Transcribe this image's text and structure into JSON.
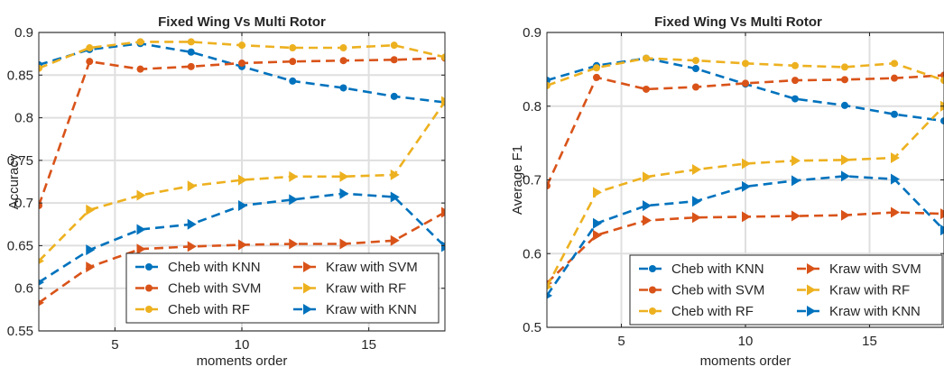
{
  "chart_data": [
    {
      "type": "line",
      "title": "Fixed Wing Vs Multi Rotor",
      "xlabel": "moments order",
      "ylabel": "Accuracy",
      "xlim": [
        2,
        18
      ],
      "ylim": [
        0.55,
        0.9
      ],
      "xticks": [
        5,
        10,
        15
      ],
      "yticks": [
        0.55,
        0.6,
        0.65,
        0.7,
        0.75,
        0.8,
        0.85,
        0.9
      ],
      "grid": true,
      "legend_position": "bottom-right",
      "x": [
        2,
        4,
        6,
        8,
        10,
        12,
        14,
        16,
        18
      ],
      "series": [
        {
          "name": "Cheb with KNN",
          "color": "#0072BD",
          "marker": "circle",
          "values": [
            0.862,
            0.88,
            0.887,
            0.877,
            0.86,
            0.843,
            0.835,
            0.825,
            0.818
          ]
        },
        {
          "name": "Cheb with SVM",
          "color": "#D95319",
          "marker": "circle",
          "values": [
            0.697,
            0.866,
            0.857,
            0.86,
            0.864,
            0.866,
            0.867,
            0.868,
            0.87
          ]
        },
        {
          "name": "Cheb with RF",
          "color": "#EDB120",
          "marker": "circle",
          "values": [
            0.858,
            0.882,
            0.889,
            0.889,
            0.885,
            0.882,
            0.882,
            0.885,
            0.871
          ]
        },
        {
          "name": "Kraw with SVM",
          "color": "#D95319",
          "marker": "triangle-right",
          "values": [
            0.583,
            0.625,
            0.646,
            0.649,
            0.651,
            0.652,
            0.652,
            0.656,
            0.689
          ]
        },
        {
          "name": "Kraw with RF",
          "color": "#EDB120",
          "marker": "triangle-right",
          "values": [
            0.632,
            0.692,
            0.709,
            0.72,
            0.727,
            0.731,
            0.731,
            0.733,
            0.819
          ]
        },
        {
          "name": "Kraw with KNN",
          "color": "#0072BD",
          "marker": "triangle-right",
          "values": [
            0.607,
            0.645,
            0.669,
            0.675,
            0.697,
            0.704,
            0.711,
            0.707,
            0.649
          ]
        }
      ]
    },
    {
      "type": "line",
      "title": "Fixed Wing Vs Multi Rotor",
      "xlabel": "moments order",
      "ylabel": "Average F1",
      "xlim": [
        2,
        18
      ],
      "ylim": [
        0.5,
        0.9
      ],
      "xticks": [
        5,
        10,
        15
      ],
      "yticks": [
        0.5,
        0.6,
        0.7,
        0.8,
        0.9
      ],
      "grid": true,
      "legend_position": "bottom-right",
      "x": [
        2,
        4,
        6,
        8,
        10,
        12,
        14,
        16,
        18
      ],
      "series": [
        {
          "name": "Cheb with KNN",
          "color": "#0072BD",
          "marker": "circle",
          "values": [
            0.835,
            0.855,
            0.865,
            0.851,
            0.83,
            0.81,
            0.801,
            0.789,
            0.78
          ]
        },
        {
          "name": "Cheb with SVM",
          "color": "#D95319",
          "marker": "circle",
          "values": [
            0.692,
            0.839,
            0.823,
            0.826,
            0.831,
            0.835,
            0.836,
            0.838,
            0.842
          ]
        },
        {
          "name": "Cheb with RF",
          "color": "#EDB120",
          "marker": "circle",
          "values": [
            0.828,
            0.852,
            0.865,
            0.862,
            0.858,
            0.855,
            0.853,
            0.858,
            0.835
          ]
        },
        {
          "name": "Kraw with SVM",
          "color": "#D95319",
          "marker": "triangle-right",
          "values": [
            0.56,
            0.625,
            0.645,
            0.649,
            0.65,
            0.651,
            0.652,
            0.656,
            0.654
          ]
        },
        {
          "name": "Kraw with RF",
          "color": "#EDB120",
          "marker": "triangle-right",
          "values": [
            0.555,
            0.683,
            0.704,
            0.714,
            0.722,
            0.726,
            0.727,
            0.73,
            0.8
          ]
        },
        {
          "name": "Kraw with KNN",
          "color": "#0072BD",
          "marker": "triangle-right",
          "values": [
            0.543,
            0.641,
            0.665,
            0.671,
            0.691,
            0.699,
            0.705,
            0.701,
            0.632
          ]
        }
      ]
    }
  ]
}
